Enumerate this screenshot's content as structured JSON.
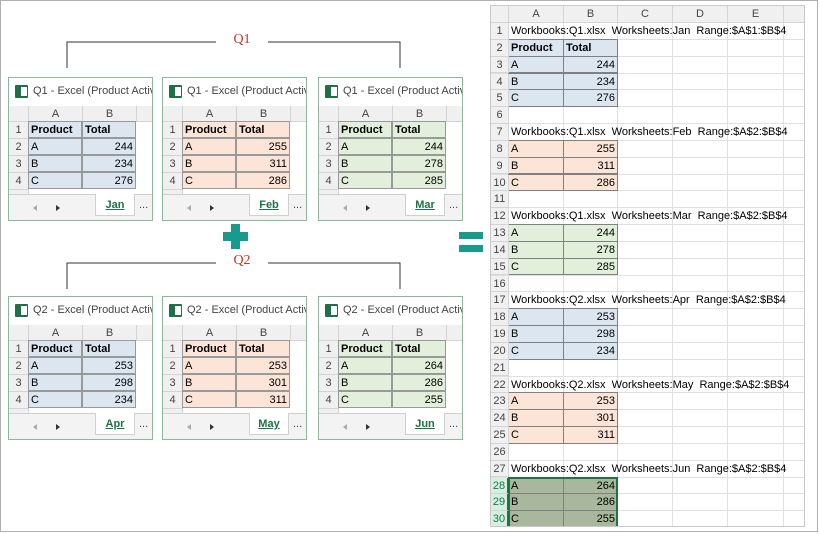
{
  "groups": [
    {
      "label": "Q1"
    },
    {
      "label": "Q2"
    }
  ],
  "window_columns": [
    "A",
    "B"
  ],
  "window_row_numbers": [
    1,
    2,
    3,
    4
  ],
  "window_header": [
    "Product",
    "Total"
  ],
  "more": "...",
  "windows": [
    {
      "title": "Q1 - Excel (Product Activa",
      "tab": "Jan",
      "fill": "#dce6f1",
      "rows": [
        [
          "A",
          244
        ],
        [
          "B",
          234
        ],
        [
          "C",
          276
        ]
      ]
    },
    {
      "title": "Q1 - Excel (Product Activa",
      "tab": "Feb",
      "fill": "#fce4d6",
      "rows": [
        [
          "A",
          255
        ],
        [
          "B",
          311
        ],
        [
          "C",
          286
        ]
      ]
    },
    {
      "title": "Q1 - Excel (Product Activa",
      "tab": "Mar",
      "fill": "#e2efda",
      "rows": [
        [
          "A",
          244
        ],
        [
          "B",
          278
        ],
        [
          "C",
          285
        ]
      ]
    },
    {
      "title": "Q2 - Excel (Product Activa",
      "tab": "Apr",
      "fill": "#dce6f1",
      "rows": [
        [
          "A",
          253
        ],
        [
          "B",
          298
        ],
        [
          "C",
          234
        ]
      ]
    },
    {
      "title": "Q2 - Excel (Product Activa",
      "tab": "May",
      "fill": "#fce4d6",
      "rows": [
        [
          "A",
          253
        ],
        [
          "B",
          301
        ],
        [
          "C",
          311
        ]
      ]
    },
    {
      "title": "Q2 - Excel (Product Activa",
      "tab": "Jun",
      "fill": "#e2efda",
      "rows": [
        [
          "A",
          264
        ],
        [
          "B",
          286
        ],
        [
          "C",
          255
        ]
      ]
    }
  ],
  "sheet": {
    "columns": [
      "A",
      "B",
      "C",
      "D",
      "E"
    ],
    "row_numbers": [
      1,
      2,
      3,
      4,
      5,
      6,
      7,
      8,
      9,
      10,
      11,
      12,
      13,
      14,
      15,
      16,
      17,
      18,
      19,
      20,
      21,
      22,
      23,
      24,
      25,
      26,
      27,
      28,
      29,
      30
    ],
    "header": [
      "Product",
      "Total"
    ],
    "blocks": [
      {
        "info": "Workbooks:Q1.xlsx  Worksheets:Jan  Range:$A$1:$B$4",
        "fill": "#dce6f1",
        "rows": [
          [
            "A",
            244
          ],
          [
            "B",
            234
          ],
          [
            "C",
            276
          ]
        ]
      },
      {
        "info": "Workbooks:Q1.xlsx  Worksheets:Feb  Range:$A$2:$B$4",
        "fill": "#fce4d6",
        "rows": [
          [
            "A",
            255
          ],
          [
            "B",
            311
          ],
          [
            "C",
            286
          ]
        ]
      },
      {
        "info": "Workbooks:Q1.xlsx  Worksheets:Mar  Range:$A$2:$B$4",
        "fill": "#e2efda",
        "rows": [
          [
            "A",
            244
          ],
          [
            "B",
            278
          ],
          [
            "C",
            285
          ]
        ]
      },
      {
        "info": "Workbooks:Q2.xlsx  Worksheets:Apr  Range:$A$2:$B$4",
        "fill": "#dce6f1",
        "rows": [
          [
            "A",
            253
          ],
          [
            "B",
            298
          ],
          [
            "C",
            234
          ]
        ]
      },
      {
        "info": "Workbooks:Q2.xlsx  Worksheets:May  Range:$A$2:$B$4",
        "fill": "#fce4d6",
        "rows": [
          [
            "A",
            253
          ],
          [
            "B",
            301
          ],
          [
            "C",
            311
          ]
        ]
      },
      {
        "info": "Workbooks:Q2.xlsx  Worksheets:Jun  Range:$A$2:$B$4",
        "fill": "#a9b79c",
        "selected": true,
        "rows": [
          [
            "A",
            264
          ],
          [
            "B",
            286
          ],
          [
            "C",
            255
          ]
        ]
      }
    ]
  }
}
